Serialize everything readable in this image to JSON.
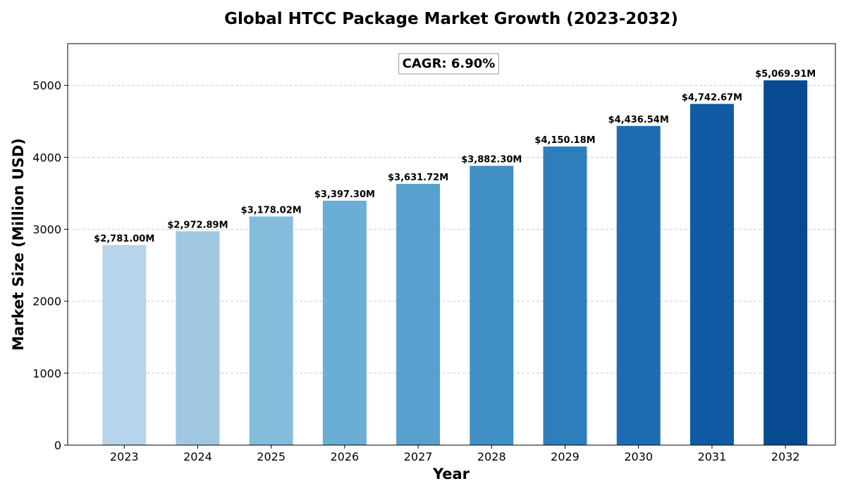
{
  "chart_data": {
    "type": "bar",
    "title": "Global HTCC Package Market Growth (2023-2032)",
    "xlabel": "Year",
    "ylabel": "Market Size (Million USD)",
    "categories": [
      "2023",
      "2024",
      "2025",
      "2026",
      "2027",
      "2028",
      "2029",
      "2030",
      "2031",
      "2032"
    ],
    "values": [
      2781.0,
      2972.89,
      3178.02,
      3397.3,
      3631.72,
      3882.3,
      4150.18,
      4436.54,
      4742.67,
      5069.91
    ],
    "value_labels": [
      "$2,781.00M",
      "$2,972.89M",
      "$3,178.02M",
      "$3,397.30M",
      "$3,631.72M",
      "$3,882.30M",
      "$4,150.18M",
      "$4,436.54M",
      "$4,742.67M",
      "$5,069.91M"
    ],
    "ylim": [
      0,
      5580
    ],
    "yticks": [
      0,
      1000,
      2000,
      3000,
      4000,
      5000
    ],
    "grid": true,
    "annotation": "CAGR: 6.90%",
    "colors": [
      "#b7d4ea",
      "#a0c8e2",
      "#85bcdc",
      "#6aaed6",
      "#58a1cf",
      "#4090c5",
      "#2e7ebc",
      "#1e6db2",
      "#105ba4",
      "#084a91"
    ]
  }
}
